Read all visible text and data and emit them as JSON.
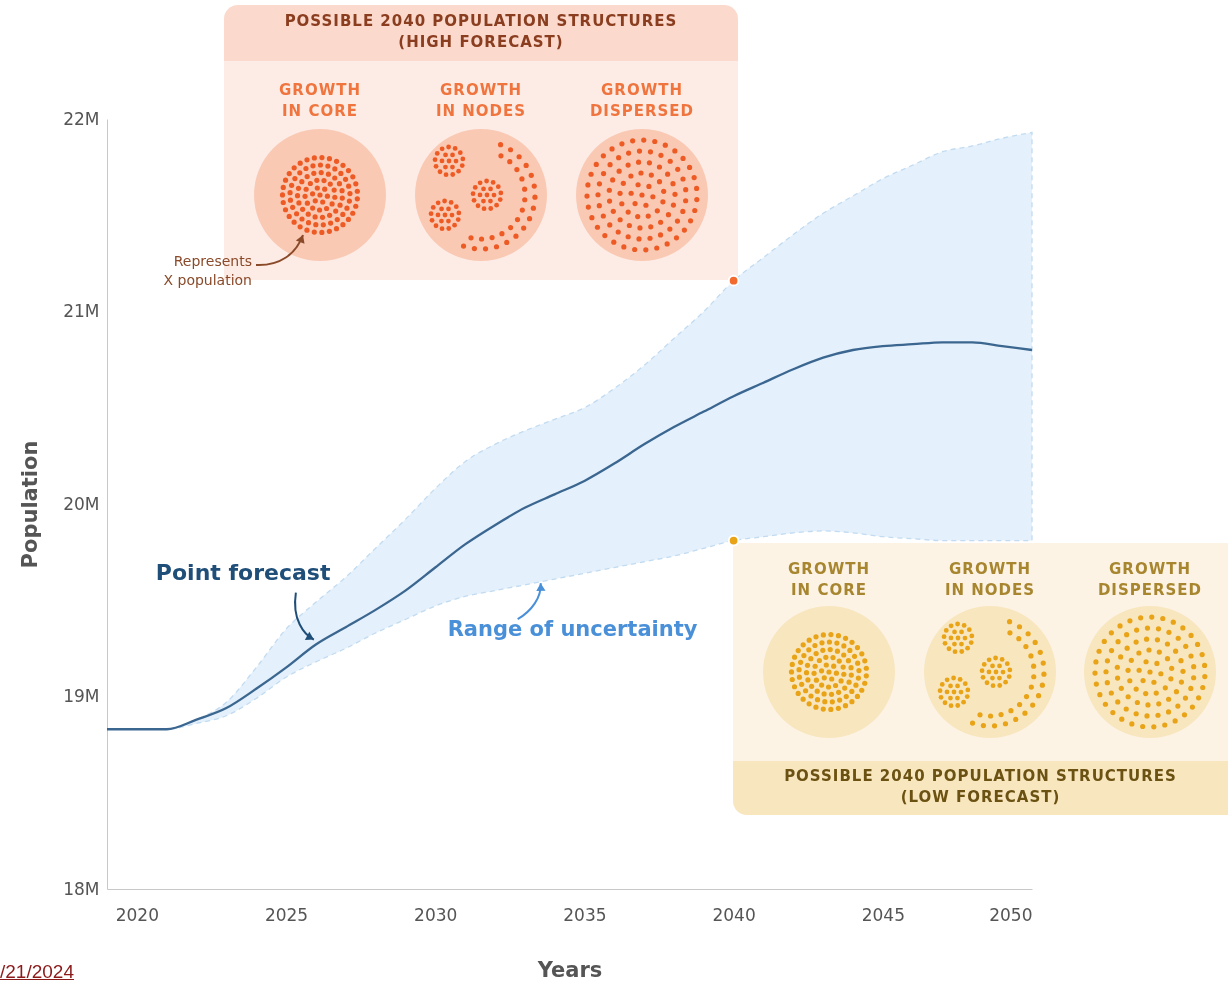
{
  "chart_data": {
    "type": "line",
    "xlabel": "Years",
    "ylabel": "Population",
    "xlim": [
      2019,
      2050
    ],
    "xticks": [
      2020,
      2025,
      2030,
      2035,
      2040,
      2045,
      2050
    ],
    "ylim": [
      18,
      22
    ],
    "yticks": [
      {
        "value": 18,
        "label": "18M"
      },
      {
        "value": 19,
        "label": "19M"
      },
      {
        "value": 20,
        "label": "20M"
      },
      {
        "value": 21,
        "label": "21M"
      },
      {
        "value": 22,
        "label": "22M"
      }
    ],
    "x": [
      2019,
      2020,
      2021,
      2022,
      2023,
      2024,
      2025,
      2026,
      2027,
      2028,
      2029,
      2030,
      2031,
      2032,
      2033,
      2034,
      2035,
      2036,
      2037,
      2038,
      2039,
      2040,
      2041,
      2042,
      2043,
      2044,
      2045,
      2046,
      2047,
      2048,
      2049,
      2050
    ],
    "series": [
      {
        "color": "#3a6690",
        "values": [
          18.83,
          18.83,
          18.83,
          18.88,
          18.94,
          19.04,
          19.15,
          19.27,
          19.36,
          19.45,
          19.55,
          19.67,
          19.79,
          19.89,
          19.98,
          20.05,
          20.12,
          20.21,
          20.31,
          20.4,
          20.48,
          20.56,
          20.63,
          20.7,
          20.76,
          20.8,
          20.82,
          20.83,
          20.84,
          20.84,
          20.82,
          20.8
        ],
        "lower": [
          18.83,
          18.83,
          18.83,
          18.86,
          18.9,
          18.99,
          19.1,
          19.18,
          19.25,
          19.33,
          19.4,
          19.47,
          19.52,
          19.55,
          19.58,
          19.61,
          19.64,
          19.67,
          19.7,
          19.73,
          19.77,
          19.81,
          19.83,
          19.85,
          19.86,
          19.85,
          19.83,
          19.82,
          19.81,
          19.81,
          19.81,
          19.81
        ],
        "upper": [
          18.83,
          18.83,
          18.83,
          18.88,
          18.97,
          19.15,
          19.35,
          19.49,
          19.62,
          19.77,
          19.92,
          20.08,
          20.22,
          20.31,
          20.38,
          20.44,
          20.5,
          20.6,
          20.72,
          20.86,
          21.0,
          21.16,
          21.28,
          21.4,
          21.51,
          21.6,
          21.69,
          21.76,
          21.83,
          21.86,
          21.9,
          21.93
        ]
      },
      {
        "type": "scatter",
        "x": [
          2040,
          2040
        ],
        "values": [
          21.16,
          19.81
        ],
        "colors": [
          "#f26a2e",
          "#e8a317"
        ]
      }
    ],
    "annotations": [
      {
        "text": "Point forecast",
        "x": 2026,
        "y": 19.27
      },
      {
        "text": "Range of uncertainty",
        "x": 2033.5,
        "y": 19.62
      },
      "POSSIBLE 2040 POPULATION STRUCTURES\n(HIGH FORECAST)",
      "GROWTH\nIN CORE",
      "GROWTH\nIN NODES",
      "GROWTH\nDISPERSED",
      "Represents\nX population",
      "GROWTH\nIN CORE",
      "GROWTH\nIN NODES",
      "GROWTH\nDISPERSED",
      "POSSIBLE 2040 POPULATION STRUCTURES\n(LOW FORECAST)",
      "/21/2024"
    ]
  }
}
